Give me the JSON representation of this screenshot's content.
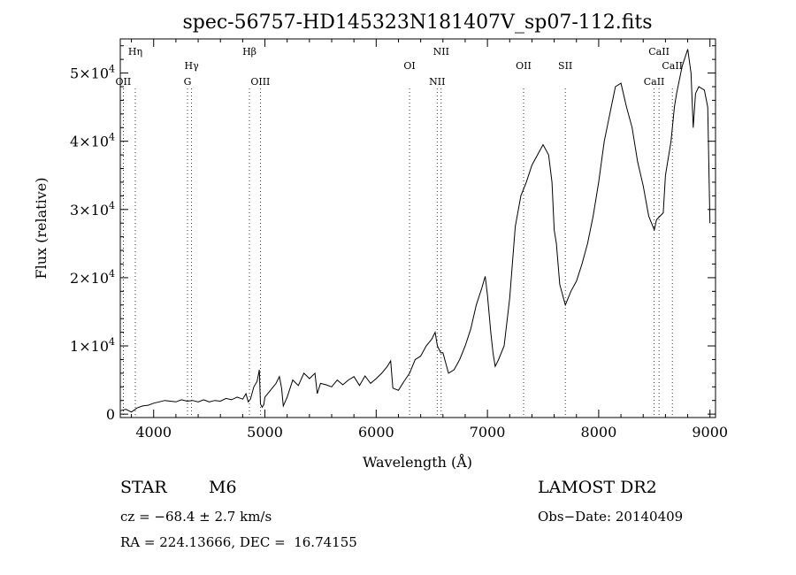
{
  "chart_data": {
    "type": "line",
    "title": "spec-56757-HD145323N181407V_sp07-112.fits",
    "xlabel": "Wavelength (Å)",
    "ylabel": "Flux (relative)",
    "xlim": [
      3700,
      9050
    ],
    "ylim": [
      -500,
      55000
    ],
    "x_ticks": [
      {
        "value": 4000,
        "label": "4000"
      },
      {
        "value": 5000,
        "label": "5000"
      },
      {
        "value": 6000,
        "label": "6000"
      },
      {
        "value": 7000,
        "label": "7000"
      },
      {
        "value": 8000,
        "label": "8000"
      },
      {
        "value": 9000,
        "label": "9000"
      }
    ],
    "y_ticks": [
      {
        "value": 0,
        "mantissa": "0",
        "exponent": ""
      },
      {
        "value": 10000,
        "mantissa": "1×10",
        "exponent": "4"
      },
      {
        "value": 20000,
        "mantissa": "2×10",
        "exponent": "4"
      },
      {
        "value": 30000,
        "mantissa": "3×10",
        "exponent": "4"
      },
      {
        "value": 40000,
        "mantissa": "4×10",
        "exponent": "4"
      },
      {
        "value": 50000,
        "mantissa": "5×10",
        "exponent": "4"
      }
    ],
    "lines": [
      {
        "wavelength": 3727,
        "label": "OII",
        "row": 2
      },
      {
        "wavelength": 3835,
        "label": "Hη",
        "row": 0
      },
      {
        "wavelength": 4304,
        "label": "G",
        "row": 2
      },
      {
        "wavelength": 4341,
        "label": "Hγ",
        "row": 1
      },
      {
        "wavelength": 4861,
        "label": "Hβ",
        "row": 0
      },
      {
        "wavelength": 4959,
        "label": "OIII",
        "row": 2
      },
      {
        "wavelength": 6300,
        "label": "OI",
        "row": 1
      },
      {
        "wavelength": 6548,
        "label": "NII",
        "row": 2
      },
      {
        "wavelength": 6584,
        "label": "NII",
        "row": 0
      },
      {
        "wavelength": 7325,
        "label": "OII",
        "row": 1
      },
      {
        "wavelength": 7700,
        "label": "SII",
        "row": 1
      },
      {
        "wavelength": 8498,
        "label": "CaII",
        "row": 2
      },
      {
        "wavelength": 8542,
        "label": "CaII",
        "row": 0
      },
      {
        "wavelength": 8662,
        "label": "CaII",
        "row": 1
      }
    ],
    "series": [
      {
        "x": [
          3700,
          3750,
          3800,
          3850,
          3900,
          3950,
          4000,
          4050,
          4100,
          4150,
          4200,
          4250,
          4300,
          4350,
          4400,
          4450,
          4500,
          4550,
          4600,
          4650,
          4700,
          4750,
          4800,
          4830,
          4850,
          4870,
          4900,
          4930,
          4950,
          4960,
          4975,
          4990,
          5000,
          5050,
          5100,
          5130,
          5150,
          5165,
          5200,
          5250,
          5300,
          5350,
          5400,
          5450,
          5470,
          5500,
          5550,
          5600,
          5650,
          5700,
          5750,
          5800,
          5850,
          5900,
          5950,
          6000,
          6050,
          6100,
          6130,
          6150,
          6200,
          6250,
          6300,
          6350,
          6400,
          6450,
          6500,
          6530,
          6550,
          6580,
          6600,
          6650,
          6700,
          6750,
          6800,
          6850,
          6900,
          6950,
          6980,
          7000,
          7030,
          7050,
          7070,
          7100,
          7150,
          7200,
          7250,
          7300,
          7350,
          7400,
          7450,
          7500,
          7550,
          7580,
          7600,
          7620,
          7650,
          7700,
          7750,
          7800,
          7850,
          7900,
          7950,
          8000,
          8050,
          8100,
          8150,
          8200,
          8250,
          8300,
          8350,
          8400,
          8450,
          8500,
          8520,
          8550,
          8580,
          8600,
          8650,
          8680,
          8700,
          8750,
          8800,
          8830,
          8850,
          8870,
          8900,
          8950,
          8980,
          9000
        ],
        "y": [
          500,
          700,
          300,
          900,
          1200,
          1300,
          1600,
          1800,
          2000,
          1900,
          1800,
          2100,
          1900,
          2000,
          1800,
          2100,
          1800,
          2000,
          1900,
          2300,
          2100,
          2500,
          2200,
          3000,
          1800,
          2200,
          4000,
          4800,
          6500,
          1500,
          1000,
          1400,
          2500,
          3500,
          4500,
          5500,
          3800,
          1200,
          2500,
          5000,
          4200,
          6000,
          5200,
          6000,
          3000,
          4500,
          4300,
          4000,
          5000,
          4300,
          5000,
          5500,
          4200,
          5600,
          4500,
          5200,
          6000,
          7000,
          7800,
          3800,
          3500,
          4800,
          6000,
          8000,
          8500,
          10000,
          11000,
          12000,
          10000,
          9000,
          9000,
          6000,
          6500,
          8000,
          10000,
          12500,
          16000,
          18500,
          20200,
          17500,
          12000,
          9000,
          7000,
          8000,
          10000,
          17000,
          27500,
          32000,
          34000,
          36500,
          38000,
          39500,
          38000,
          34000,
          27000,
          25000,
          19000,
          16000,
          18000,
          19500,
          22000,
          25000,
          29000,
          34000,
          40000,
          44000,
          48000,
          48500,
          45000,
          42000,
          37000,
          33500,
          29000,
          27000,
          28500,
          29000,
          29500,
          35000,
          40000,
          45000,
          47000,
          51000,
          53500,
          50000,
          42000,
          47000,
          48000,
          47500,
          45000,
          28000
        ]
      }
    ]
  },
  "info": {
    "object_class": "STAR",
    "subclass": "M6",
    "survey": "LAMOST DR2",
    "cz": "cz = −68.4 ± 2.7 km/s",
    "obs_date": "Obs−Date: 20140409",
    "coords": "RA = 224.13666, DEC =  16.74155"
  }
}
